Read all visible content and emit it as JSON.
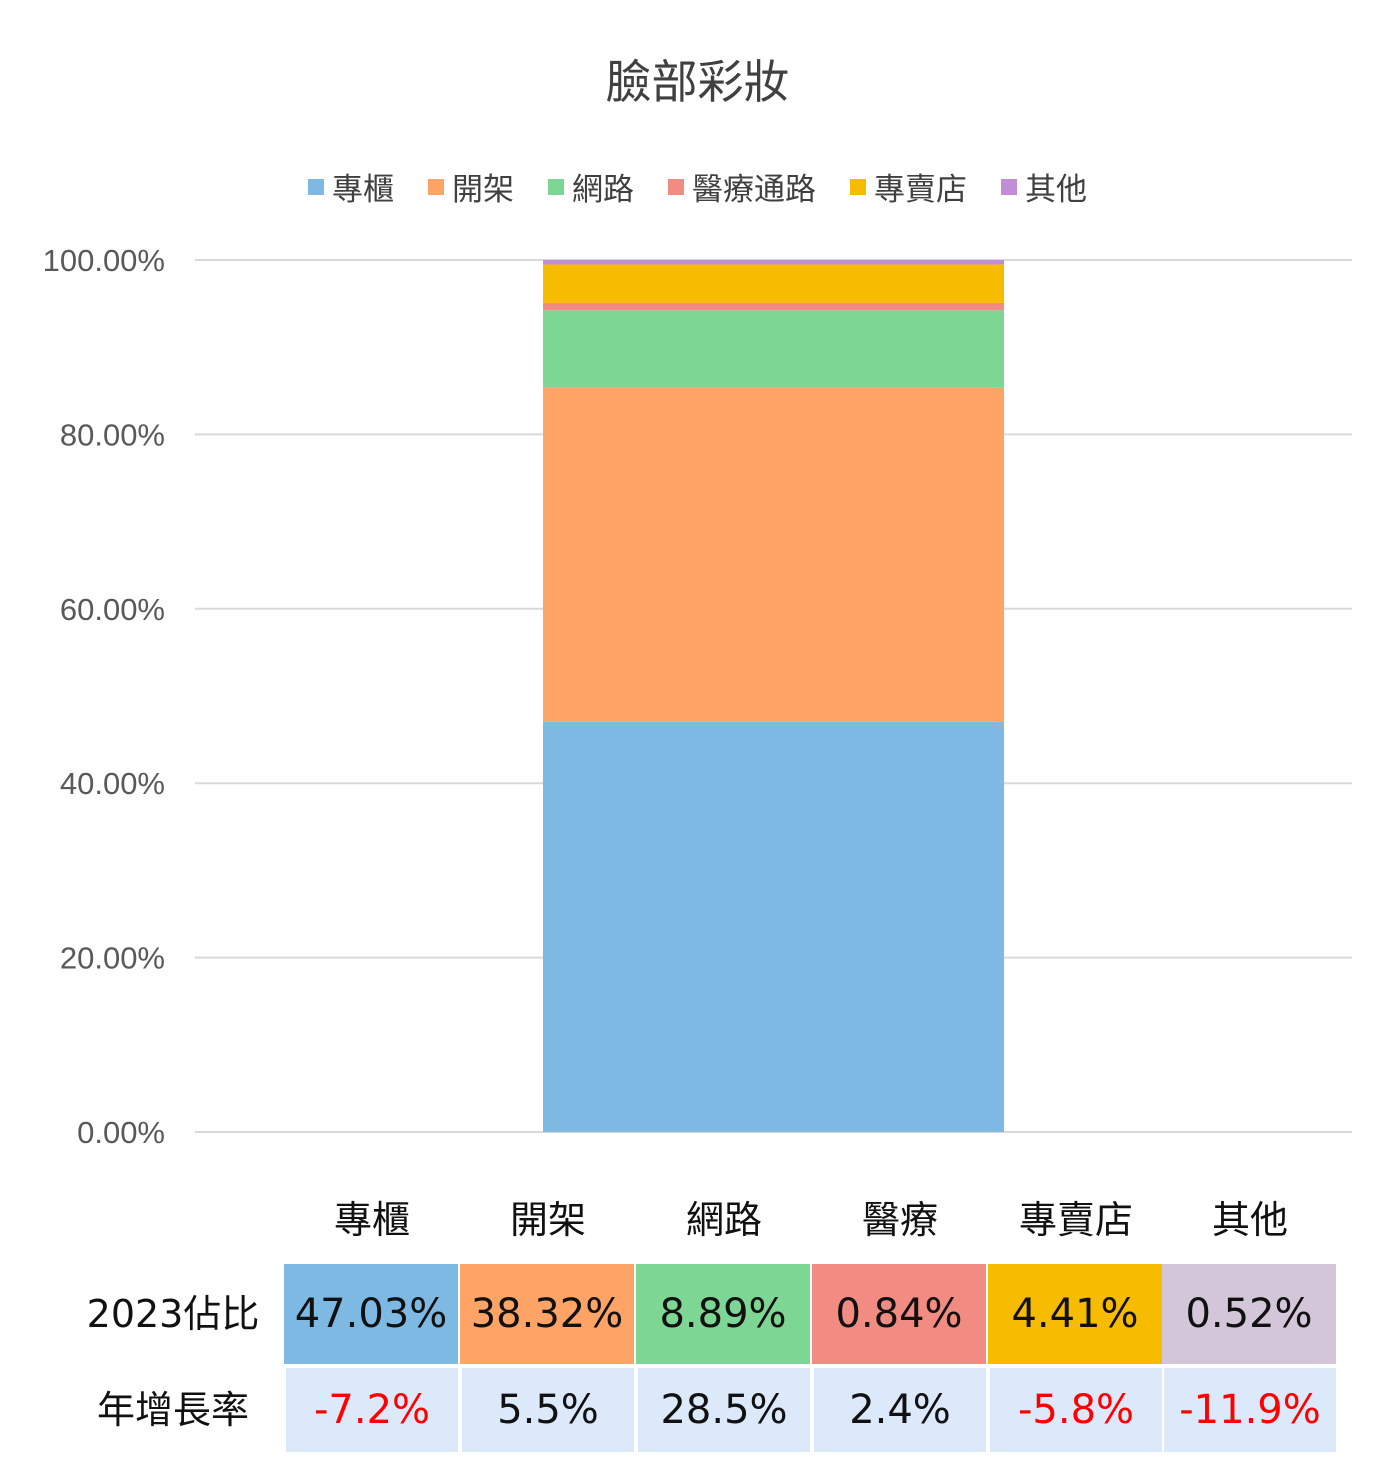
{
  "chart_data": {
    "type": "bar",
    "stacked": true,
    "title": "臉部彩妝",
    "categories": [
      ""
    ],
    "series": [
      {
        "name": "專櫃",
        "values": [
          47.03
        ],
        "color": "#7db9e3"
      },
      {
        "name": "開架",
        "values": [
          38.32
        ],
        "color": "#ffa466"
      },
      {
        "name": "網路",
        "values": [
          8.89
        ],
        "color": "#7dd693"
      },
      {
        "name": "醫療通路",
        "values": [
          0.84
        ],
        "color": "#f28b82"
      },
      {
        "name": "專賣店",
        "values": [
          4.41
        ],
        "color": "#f7bb00"
      },
      {
        "name": "其他",
        "values": [
          0.52
        ],
        "color": "#c08ed6"
      }
    ],
    "ylim": [
      0,
      100
    ],
    "yticks": [
      "0.00%",
      "20.00%",
      "40.00%",
      "60.00%",
      "80.00%",
      "100.00%"
    ],
    "grid": true,
    "legend_position": "top"
  },
  "table": {
    "headers": [
      "專櫃",
      "開架",
      "網路",
      "醫療",
      "專賣店",
      "其他"
    ],
    "row1_label": "2023佔比",
    "row1": [
      "47.03%",
      "38.32%",
      "8.89%",
      "0.84%",
      "4.41%",
      "0.52%"
    ],
    "row1_colors": [
      "#7db9e3",
      "#ffa466",
      "#7dd693",
      "#f28b82",
      "#f7bb00",
      "#d2c6d8"
    ],
    "row2_label": "年增長率",
    "row2": [
      "-7.2%",
      "5.5%",
      "28.5%",
      "2.4%",
      "-5.8%",
      "-11.9%"
    ],
    "row2_colors": [
      "#ff0000",
      "#111111",
      "#111111",
      "#111111",
      "#ff0000",
      "#ff0000"
    ]
  }
}
